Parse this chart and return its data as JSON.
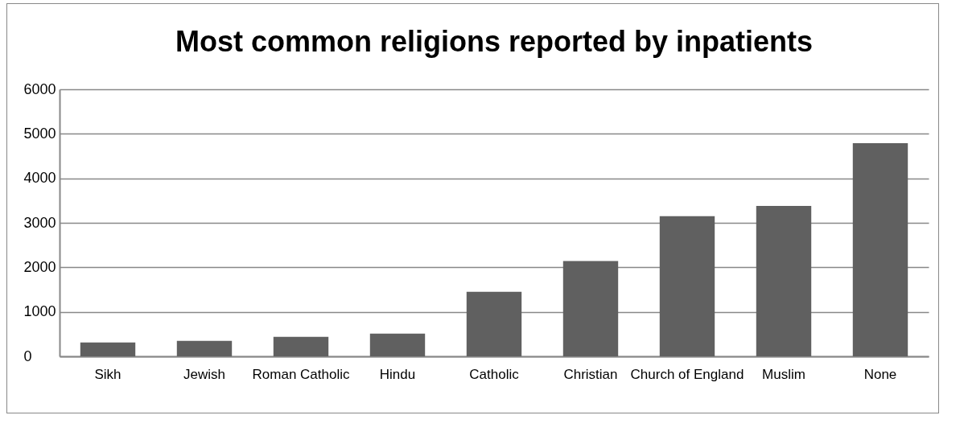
{
  "chart_data": {
    "type": "bar",
    "title": "Most common religions reported by inpatients",
    "categories": [
      "Sikh",
      "Jewish",
      "Roman Catholic",
      "Hindu",
      "Catholic",
      "Christian",
      "Church of England",
      "Muslim",
      "None"
    ],
    "values": [
      310,
      350,
      440,
      510,
      1450,
      2140,
      3150,
      3380,
      4790
    ],
    "color": "#606060",
    "ylim": [
      0,
      6000
    ],
    "yticks": [
      0,
      1000,
      2000,
      3000,
      4000,
      5000,
      6000
    ],
    "grid": "y"
  }
}
